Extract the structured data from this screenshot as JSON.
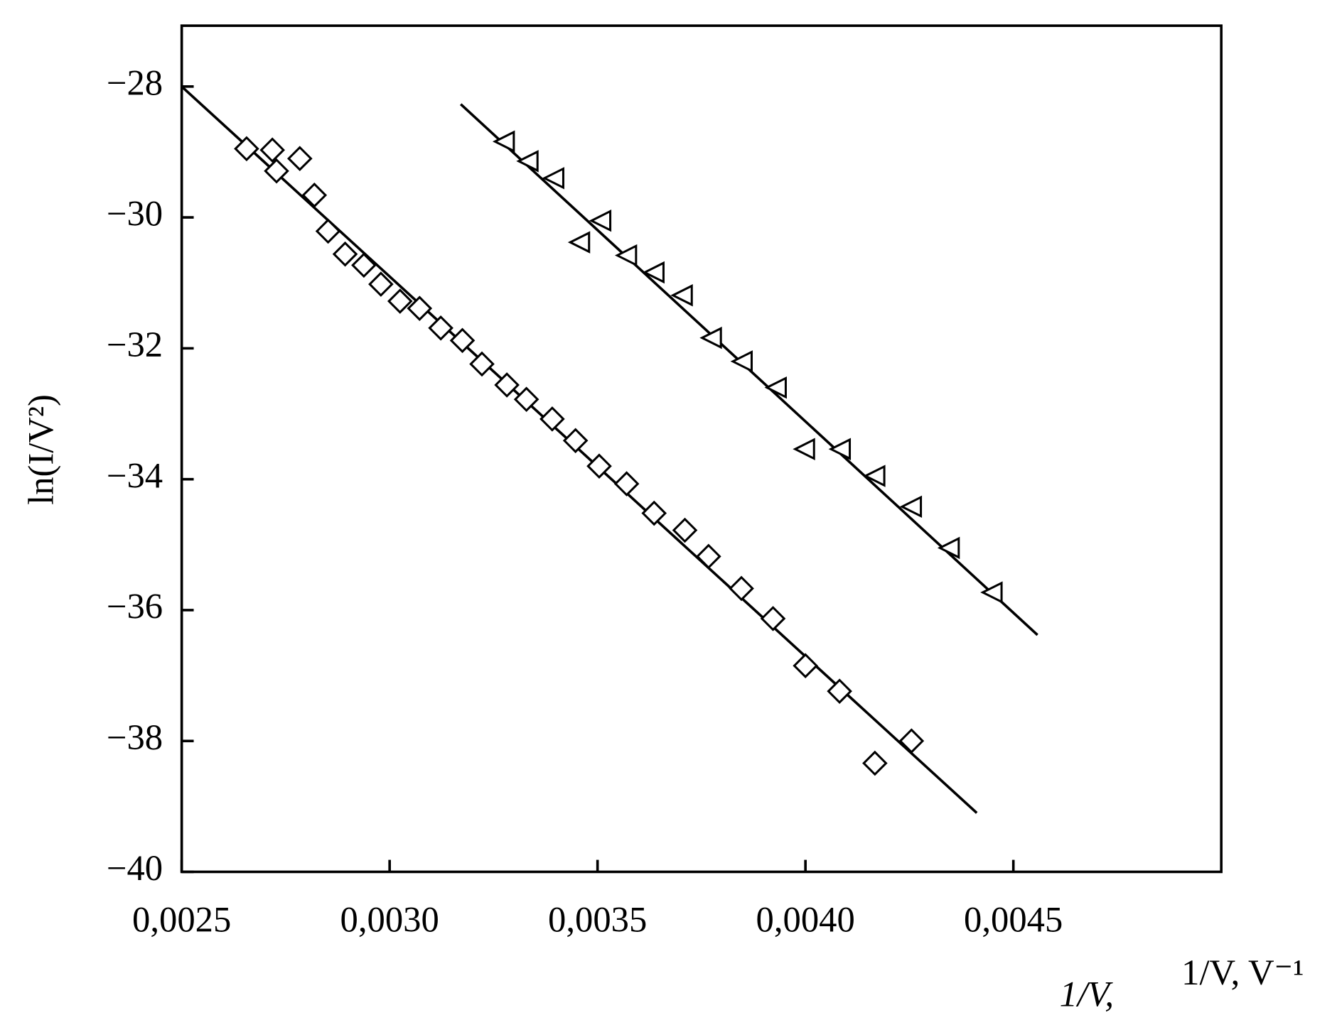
{
  "chart_data": {
    "type": "scatter",
    "y_label": "ln(I/V²)",
    "x_label": "1/V,",
    "x_label_units": "1/V, V⁻¹",
    "xlim": [
      0.0025,
      0.005
    ],
    "ylim": [
      -40,
      -27.07
    ],
    "xticks": [
      {
        "value": 0.0025,
        "label": "0,0025"
      },
      {
        "value": 0.003,
        "label": "0,0030"
      },
      {
        "value": 0.0035,
        "label": "0,0035"
      },
      {
        "value": 0.004,
        "label": "0,0040"
      },
      {
        "value": 0.0045,
        "label": "0,0045"
      }
    ],
    "yticks": [
      {
        "value": -28,
        "label": "−28"
      },
      {
        "value": -30,
        "label": "−30"
      },
      {
        "value": -32,
        "label": "−32"
      },
      {
        "value": -34,
        "label": "−34"
      },
      {
        "value": -36,
        "label": "−36"
      },
      {
        "value": -38,
        "label": "−38"
      },
      {
        "value": -40,
        "label": "−40"
      }
    ],
    "series": [
      {
        "marker": "diamond",
        "color": "#000000",
        "x": [
          0.002656,
          0.002718,
          0.002728,
          0.002784,
          0.002819,
          0.002852,
          0.002893,
          0.002938,
          0.002979,
          0.003025,
          0.003072,
          0.003123,
          0.003175,
          0.003222,
          0.003282,
          0.003329,
          0.003391,
          0.003447,
          0.003504,
          0.00357,
          0.003636,
          0.00371,
          0.003767,
          0.003846,
          0.003922,
          0.004,
          0.004082,
          0.004167,
          0.004255
        ],
        "values": [
          -28.95,
          -28.97,
          -29.29,
          -29.1,
          -29.66,
          -30.21,
          -30.56,
          -30.73,
          -31.02,
          -31.28,
          -31.39,
          -31.69,
          -31.88,
          -32.24,
          -32.56,
          -32.78,
          -33.08,
          -33.41,
          -33.8,
          -34.07,
          -34.52,
          -34.78,
          -35.18,
          -35.67,
          -36.13,
          -36.85,
          -37.24,
          -38.34,
          -38.0
        ]
      },
      {
        "marker": "triangle",
        "color": "#000000",
        "x": [
          0.003278,
          0.003335,
          0.003397,
          0.003459,
          0.00351,
          0.003572,
          0.003638,
          0.003706,
          0.003776,
          0.00385,
          0.003932,
          0.004,
          0.004086,
          0.004169,
          0.004257,
          0.004348,
          0.004451
        ],
        "values": [
          -28.84,
          -29.14,
          -29.4,
          -30.38,
          -30.05,
          -30.58,
          -30.84,
          -31.19,
          -31.84,
          -32.2,
          -32.6,
          -33.54,
          -33.54,
          -33.95,
          -34.42,
          -35.05,
          -35.73
        ]
      }
    ],
    "fit_lines": [
      {
        "color": "#000000",
        "x": [
          0.0025,
          0.004412
        ],
        "values": [
          -28,
          -39.1
        ]
      },
      {
        "color": "#000000",
        "x": [
          0.003171,
          0.004558
        ],
        "values": [
          -28.27,
          -36.38
        ]
      }
    ]
  }
}
